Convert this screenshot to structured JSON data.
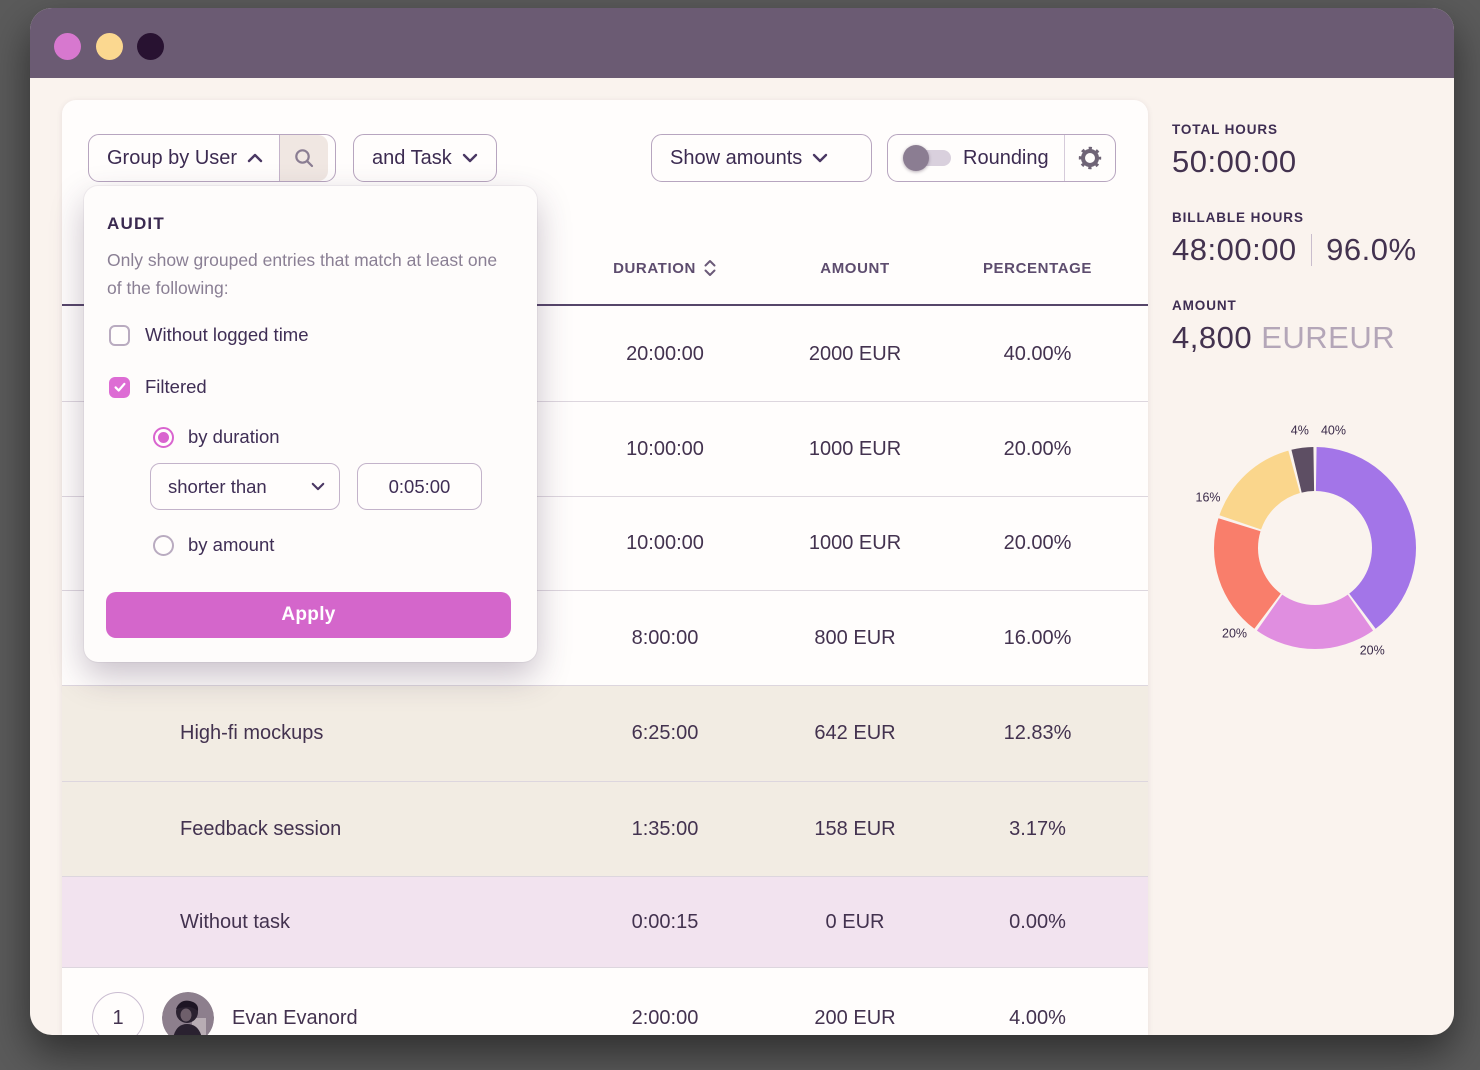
{
  "titlebar": {
    "traffic_lights": {
      "close": "#d778cf",
      "minimize": "#fbd890",
      "zoom": "#281231"
    }
  },
  "toolbar": {
    "group_by_label": "Group by User",
    "and_task_label": "and Task",
    "show_amounts_label": "Show amounts",
    "rounding_label": "Rounding",
    "rounding_enabled": false
  },
  "audit_popover": {
    "title": "AUDIT",
    "description": "Only show grouped entries that match at least one of the following:",
    "without_logged_label": "Without logged time",
    "without_logged_checked": false,
    "filtered_label": "Filtered",
    "filtered_checked": true,
    "by_duration_label": "by duration",
    "by_duration_selected": true,
    "duration_operator": "shorter than",
    "duration_value": "0:05:00",
    "by_amount_label": "by amount",
    "by_amount_selected": false,
    "apply_label": "Apply"
  },
  "table": {
    "headers": {
      "duration": "DURATION",
      "amount": "AMOUNT",
      "percentage": "PERCENTAGE"
    },
    "rows": [
      {
        "name": "",
        "duration": "20:00:00",
        "amount": "2000 EUR",
        "percentage": "40.00%",
        "variant": "plain"
      },
      {
        "name": "",
        "duration": "10:00:00",
        "amount": "1000 EUR",
        "percentage": "20.00%",
        "variant": "plain"
      },
      {
        "name": "",
        "duration": "10:00:00",
        "amount": "1000 EUR",
        "percentage": "20.00%",
        "variant": "plain"
      },
      {
        "name": "",
        "duration": "8:00:00",
        "amount": "800 EUR",
        "percentage": "16.00%",
        "variant": "plain"
      },
      {
        "name": "High-fi mockups",
        "duration": "6:25:00",
        "amount": "642 EUR",
        "percentage": "12.83%",
        "variant": "task"
      },
      {
        "name": "Feedback session",
        "duration": "1:35:00",
        "amount": "158 EUR",
        "percentage": "3.17%",
        "variant": "task"
      },
      {
        "name": "Without task",
        "duration": "0:00:15",
        "amount": "0 EUR",
        "percentage": "0.00%",
        "variant": "highlight"
      },
      {
        "name": "Evan Evanord",
        "duration": "2:00:00",
        "amount": "200 EUR",
        "percentage": "4.00%",
        "variant": "user",
        "rank": "1"
      }
    ]
  },
  "summary": {
    "total_hours_label": "TOTAL HOURS",
    "total_hours": "50:00:00",
    "billable_label": "BILLABLE HOURS",
    "billable_hours": "48:00:00",
    "billable_percent": "96.0%",
    "amount_label": "AMOUNT",
    "amount_value": "4,800",
    "amount_currency": "EUR"
  },
  "chart_data": {
    "type": "pie",
    "title": "",
    "labels": [
      "40%",
      "20%",
      "20%",
      "16%",
      "4%"
    ],
    "values": [
      40,
      20,
      20,
      16,
      4
    ],
    "colors": [
      "#a375e8",
      "#e08ee0",
      "#f97e6b",
      "#fad68c",
      "#5d4e63"
    ],
    "donut": true,
    "start_angle_deg": 0,
    "legend_position": "none"
  }
}
